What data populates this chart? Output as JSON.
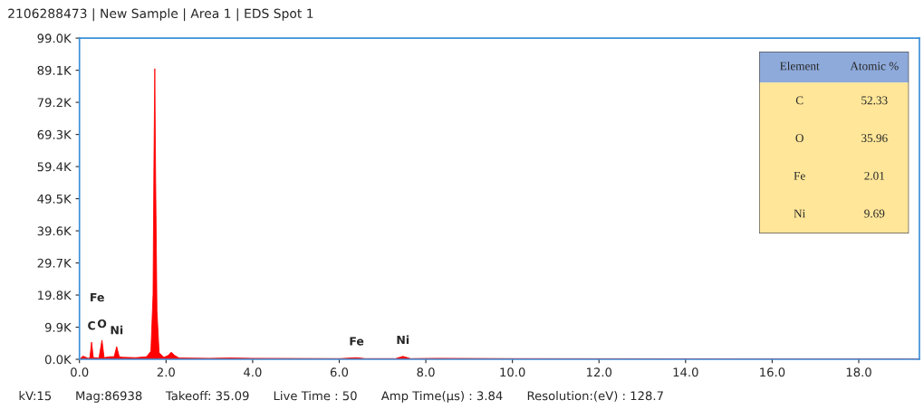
{
  "chart_data": [
    {
      "type": "area",
      "title": "2106288473 | New Sample | Area 1 | EDS Spot 1",
      "x": [
        0,
        0.08,
        0.2,
        0.24,
        0.28,
        0.32,
        0.45,
        0.52,
        0.57,
        0.7,
        0.8,
        0.86,
        0.92,
        1.0,
        1.3,
        1.55,
        1.65,
        1.7,
        1.72,
        1.74,
        1.76,
        1.79,
        1.84,
        1.95,
        2.05,
        2.12,
        2.2,
        2.3,
        3.0,
        3.5,
        4.0,
        6.0,
        6.4,
        6.6,
        7.3,
        7.47,
        7.65,
        8.26,
        10.0,
        19.4
      ],
      "series": [
        {
          "color": "#ff0000",
          "values": [
            0,
            1000,
            300,
            500,
            5300,
            500,
            400,
            5900,
            500,
            800,
            800,
            3900,
            800,
            600,
            500,
            800,
            2500,
            20000,
            60000,
            89600,
            55000,
            15000,
            2000,
            600,
            1200,
            2200,
            1200,
            400,
            300,
            400,
            300,
            200,
            500,
            200,
            200,
            900,
            200,
            300,
            200,
            100
          ]
        }
      ],
      "xlim": [
        0,
        19.4
      ],
      "ylim": [
        0,
        99000
      ],
      "xticks": [
        {
          "value": 0,
          "label": "0.0"
        },
        {
          "value": 2,
          "label": "2.0"
        },
        {
          "value": 4,
          "label": "4.0"
        },
        {
          "value": 6,
          "label": "6.0"
        },
        {
          "value": 8,
          "label": "8.0"
        },
        {
          "value": 10,
          "label": "10.0"
        },
        {
          "value": 12,
          "label": "12.0"
        },
        {
          "value": 14,
          "label": "14.0"
        },
        {
          "value": 16,
          "label": "16.0"
        },
        {
          "value": 18,
          "label": "18.0"
        }
      ],
      "yticks": [
        {
          "value": 0,
          "label": "0.0K"
        },
        {
          "value": 9900,
          "label": "9.9K"
        },
        {
          "value": 19800,
          "label": "19.8K"
        },
        {
          "value": 29700,
          "label": "29.7K"
        },
        {
          "value": 39600,
          "label": "39.6K"
        },
        {
          "value": 49500,
          "label": "49.5K"
        },
        {
          "value": 59400,
          "label": "59.4K"
        },
        {
          "value": 69300,
          "label": "69.3K"
        },
        {
          "value": 79200,
          "label": "79.2K"
        },
        {
          "value": 89100,
          "label": "89.1K"
        },
        {
          "value": 99000,
          "label": "99.0K"
        }
      ],
      "grid": false,
      "annotations": [
        "Fe",
        {
          "text": "C",
          "x": 0.28,
          "y": 5300
        },
        {
          "text": "O",
          "x": 0.52,
          "y": 5900
        },
        {
          "text": "Ni",
          "x": 0.86,
          "y": 3900
        },
        {
          "text": "Fe",
          "x": 6.4,
          "y": 500
        },
        {
          "text": "Ni",
          "x": 7.47,
          "y": 900
        },
        "kV:15",
        "Mag:86938",
        "Takeoff: 35.09",
        "Live Time : 50",
        "Amp Time(µs) : 3.84",
        "Resolution:(eV) : 128.7"
      ]
    },
    {
      "type": "other",
      "categories": [
        "C",
        "O",
        "Fe",
        "Ni"
      ],
      "values": [
        52.33,
        35.96,
        2.01,
        9.69
      ],
      "data_labels": true,
      "annotations": [
        "Element",
        "Atomic %"
      ]
    }
  ]
}
